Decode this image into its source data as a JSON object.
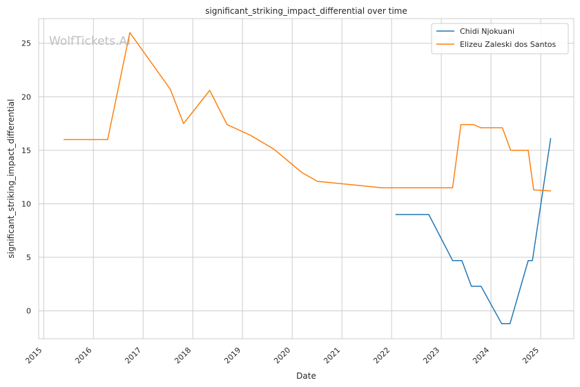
{
  "chart_data": {
    "type": "line",
    "title": "significant_striking_impact_differential over time",
    "xlabel": "Date",
    "ylabel": "significant_striking_impact_differential",
    "watermark": "WolfTickets.AI",
    "x_ticks": [
      "2015",
      "2016",
      "2017",
      "2018",
      "2019",
      "2020",
      "2021",
      "2022",
      "2023",
      "2024",
      "2025"
    ],
    "y_ticks": [
      "0",
      "5",
      "10",
      "15",
      "20",
      "25"
    ],
    "xlim": [
      "2014-11-25",
      "2025-09-01"
    ],
    "ylim": [
      -2.6,
      27.3
    ],
    "grid": true,
    "legend_position": "top-right",
    "series": [
      {
        "name": "Chidi Njokuani",
        "color": "#1f77b4",
        "points": [
          [
            "2022-02-01",
            9.0
          ],
          [
            "2022-10-01",
            9.0
          ],
          [
            "2023-03-25",
            4.7
          ],
          [
            "2023-06-01",
            4.7
          ],
          [
            "2023-08-10",
            2.3
          ],
          [
            "2023-10-20",
            2.3
          ],
          [
            "2024-03-20",
            -1.2
          ],
          [
            "2024-05-20",
            -1.2
          ],
          [
            "2024-10-01",
            4.7
          ],
          [
            "2024-11-01",
            4.7
          ],
          [
            "2025-03-15",
            16.1
          ]
        ]
      },
      {
        "name": "Elizeu Zaleski dos Santos",
        "color": "#ff7f0e",
        "points": [
          [
            "2015-05-30",
            16.0
          ],
          [
            "2016-04-15",
            16.0
          ],
          [
            "2016-09-25",
            26.0
          ],
          [
            "2017-07-20",
            20.7
          ],
          [
            "2017-10-25",
            17.5
          ],
          [
            "2018-05-05",
            20.6
          ],
          [
            "2018-09-10",
            17.4
          ],
          [
            "2019-03-01",
            16.4
          ],
          [
            "2019-08-20",
            15.1
          ],
          [
            "2020-03-15",
            12.9
          ],
          [
            "2020-07-05",
            12.1
          ],
          [
            "2021-10-25",
            11.5
          ],
          [
            "2023-03-25",
            11.5
          ],
          [
            "2023-05-25",
            17.4
          ],
          [
            "2023-08-25",
            17.4
          ],
          [
            "2023-10-20",
            17.1
          ],
          [
            "2024-03-25",
            17.1
          ],
          [
            "2024-05-25",
            15.0
          ],
          [
            "2024-10-01",
            15.0
          ],
          [
            "2024-11-10",
            11.3
          ],
          [
            "2025-03-15",
            11.2
          ]
        ]
      }
    ]
  }
}
